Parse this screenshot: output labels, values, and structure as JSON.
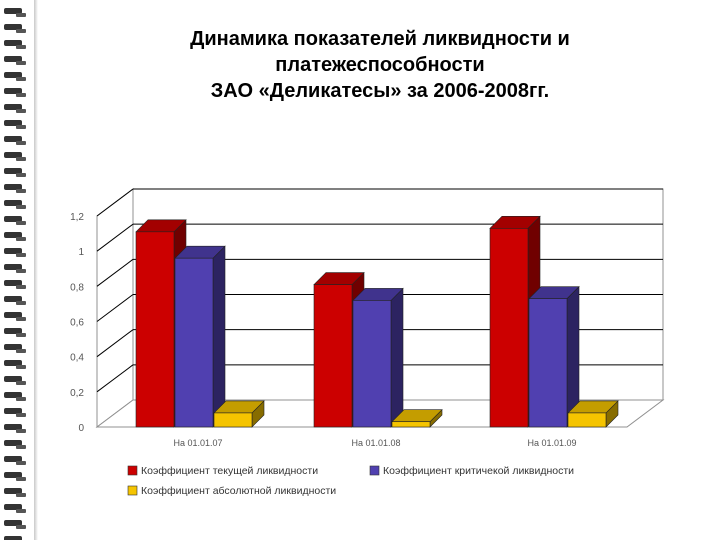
{
  "title": "Динамика показателей ликвидности и\nплатежеспособности\nЗАО «Деликатесы» за 2006-2008гг.",
  "colors": {
    "background": "#ffffff",
    "binding": "#333333",
    "series": [
      "#cc0000",
      "#5040b0",
      "#f5c400"
    ]
  },
  "chart_data": {
    "type": "bar",
    "title": "Динамика показателей ликвидности и платежеспособности ЗАО «Деликатесы» за 2006-2008гг.",
    "categories": [
      "На 01.01.07",
      "На 01.01.08",
      "На 01.01.09"
    ],
    "series": [
      {
        "name": "Коэффициент текущей ликвидности",
        "values": [
          1.11,
          0.81,
          1.13
        ],
        "color": "#cc0000"
      },
      {
        "name": "Коэффициент критичекой ликвидности",
        "values": [
          0.96,
          0.72,
          0.73
        ],
        "color": "#5040b0"
      },
      {
        "name": "Коэффициент абсолютной ликвидности",
        "values": [
          0.08,
          0.03,
          0.08
        ],
        "color": "#f5c400"
      }
    ],
    "y_ticks": [
      "0",
      "0,2",
      "0,4",
      "0,6",
      "0,8",
      "1",
      "1,2"
    ],
    "ylim": [
      0,
      1.2
    ],
    "grid": true,
    "three_d": true,
    "legend_position": "bottom"
  }
}
